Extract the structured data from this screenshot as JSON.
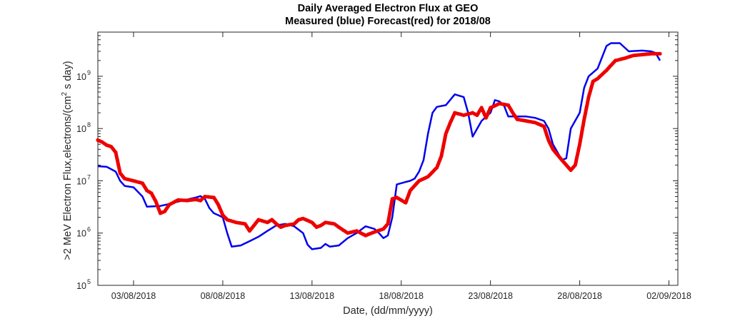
{
  "chart_data": {
    "type": "line",
    "title": "Daily Averaged Electron Flux at GEO",
    "subtitle": "Measured (blue) Forecast(red) for 2018/08",
    "xlabel": "Date, (dd/mm/yyyy)",
    "ylabel": ">2 MeV Electron Flux,electrons/(cm",
    "ylabel_sup": "2",
    "ylabel_suffix": " s day)",
    "yscale": "log",
    "ylim": [
      100000,
      7000000000
    ],
    "xlim": [
      "2018-08-01",
      "2018-09-02T12:00"
    ],
    "grid": false,
    "xticks": [
      {
        "date": "2018-08-03",
        "label": "03/08/2018"
      },
      {
        "date": "2018-08-08",
        "label": "08/08/2018"
      },
      {
        "date": "2018-08-13",
        "label": "13/08/2018"
      },
      {
        "date": "2018-08-18",
        "label": "18/08/2018"
      },
      {
        "date": "2018-08-23",
        "label": "23/08/2018"
      },
      {
        "date": "2018-08-28",
        "label": "28/08/2018"
      },
      {
        "date": "2018-09-02",
        "label": "02/09/2018"
      }
    ],
    "yticks": [
      {
        "value": 100000,
        "base": "10",
        "exp": "5"
      },
      {
        "value": 1000000,
        "base": "10",
        "exp": "6"
      },
      {
        "value": 10000000,
        "base": "10",
        "exp": "7"
      },
      {
        "value": 100000000,
        "base": "10",
        "exp": "8"
      },
      {
        "value": 1000000000,
        "base": "10",
        "exp": "9"
      }
    ],
    "series": [
      {
        "color": "#0000ee",
        "style": "line",
        "points": [
          [
            "2018-08-01T00:00",
            19000000.0
          ],
          [
            "2018-08-01T12:00",
            18500000.0
          ],
          [
            "2018-08-02T00:00",
            15000000.0
          ],
          [
            "2018-08-02T06:00",
            10000000.0
          ],
          [
            "2018-08-02T12:00",
            8000000.0
          ],
          [
            "2018-08-03T00:00",
            7500000.0
          ],
          [
            "2018-08-03T12:00",
            5000000.0
          ],
          [
            "2018-08-03T18:00",
            3200000.0
          ],
          [
            "2018-08-04T12:00",
            3300000.0
          ],
          [
            "2018-08-05T00:00",
            3600000.0
          ],
          [
            "2018-08-05T12:00",
            4000000.0
          ],
          [
            "2018-08-06T12:00",
            4800000.0
          ],
          [
            "2018-08-06T18:00",
            5100000.0
          ],
          [
            "2018-08-07T00:00",
            4500000.0
          ],
          [
            "2018-08-07T06:00",
            3000000.0
          ],
          [
            "2018-08-07T12:00",
            2400000.0
          ],
          [
            "2018-08-07T18:00",
            2200000.0
          ],
          [
            "2018-08-08T00:00",
            2000000.0
          ],
          [
            "2018-08-08T06:00",
            1000000.0
          ],
          [
            "2018-08-08T12:00",
            550000.0
          ],
          [
            "2018-08-09T00:00",
            580000.0
          ],
          [
            "2018-08-09T12:00",
            700000.0
          ],
          [
            "2018-08-10T00:00",
            850000.0
          ],
          [
            "2018-08-10T12:00",
            1100000.0
          ],
          [
            "2018-08-11T00:00",
            1400000.0
          ],
          [
            "2018-08-11T12:00",
            1500000.0
          ],
          [
            "2018-08-12T00:00",
            1350000.0
          ],
          [
            "2018-08-12T12:00",
            1000000.0
          ],
          [
            "2018-08-12T18:00",
            600000.0
          ],
          [
            "2018-08-13T00:00",
            490000.0
          ],
          [
            "2018-08-13T12:00",
            520000.0
          ],
          [
            "2018-08-13T18:00",
            620000.0
          ],
          [
            "2018-08-14T00:00",
            550000.0
          ],
          [
            "2018-08-14T12:00",
            580000.0
          ],
          [
            "2018-08-15T00:00",
            800000.0
          ],
          [
            "2018-08-15T12:00",
            1000000.0
          ],
          [
            "2018-08-16T00:00",
            1350000.0
          ],
          [
            "2018-08-16T12:00",
            1200000.0
          ],
          [
            "2018-08-16T18:00",
            1000000.0
          ],
          [
            "2018-08-17T00:00",
            800000.0
          ],
          [
            "2018-08-17T06:00",
            900000.0
          ],
          [
            "2018-08-17T12:00",
            2000000.0
          ],
          [
            "2018-08-17T18:00",
            8500000.0
          ],
          [
            "2018-08-18T06:00",
            9500000.0
          ],
          [
            "2018-08-18T12:00",
            10000000.0
          ],
          [
            "2018-08-18T18:00",
            11000000.0
          ],
          [
            "2018-08-19T00:00",
            15000000.0
          ],
          [
            "2018-08-19T06:00",
            25000000.0
          ],
          [
            "2018-08-19T12:00",
            80000000.0
          ],
          [
            "2018-08-19T18:00",
            200000000.0
          ],
          [
            "2018-08-20T00:00",
            260000000.0
          ],
          [
            "2018-08-20T12:00",
            280000000.0
          ],
          [
            "2018-08-21T00:00",
            450000000.0
          ],
          [
            "2018-08-21T12:00",
            400000000.0
          ],
          [
            "2018-08-21T18:00",
            200000000.0
          ],
          [
            "2018-08-22T00:00",
            70000000.0
          ],
          [
            "2018-08-22T12:00",
            140000000.0
          ],
          [
            "2018-08-23T00:00",
            200000000.0
          ],
          [
            "2018-08-23T06:00",
            350000000.0
          ],
          [
            "2018-08-23T12:00",
            330000000.0
          ],
          [
            "2018-08-23T18:00",
            280000000.0
          ],
          [
            "2018-08-24T00:00",
            170000000.0
          ],
          [
            "2018-08-25T00:00",
            170000000.0
          ],
          [
            "2018-08-25T12:00",
            160000000.0
          ],
          [
            "2018-08-26T00:00",
            140000000.0
          ],
          [
            "2018-08-26T06:00",
            100000000.0
          ],
          [
            "2018-08-26T12:00",
            50000000.0
          ],
          [
            "2018-08-27T00:00",
            25000000.0
          ],
          [
            "2018-08-27T06:00",
            27000000.0
          ],
          [
            "2018-08-27T12:00",
            100000000.0
          ],
          [
            "2018-08-28T00:00",
            200000000.0
          ],
          [
            "2018-08-28T06:00",
            600000000.0
          ],
          [
            "2018-08-28T12:00",
            1000000000.0
          ],
          [
            "2018-08-29T00:00",
            1400000000.0
          ],
          [
            "2018-08-29T12:00",
            3800000000.0
          ],
          [
            "2018-08-29T18:00",
            4300000000.0
          ],
          [
            "2018-08-30T06:00",
            4300000000.0
          ],
          [
            "2018-08-30T18:00",
            3000000000.0
          ],
          [
            "2018-08-31T12:00",
            3100000000.0
          ],
          [
            "2018-09-01T00:00",
            3000000000.0
          ],
          [
            "2018-09-01T06:00",
            2800000000.0
          ],
          [
            "2018-09-01T12:00",
            2000000000.0
          ]
        ]
      },
      {
        "color": "#ee0000",
        "style": "dots",
        "points": [
          [
            "2018-08-01T00:00",
            60000000.0
          ],
          [
            "2018-08-01T06:00",
            55000000.0
          ],
          [
            "2018-08-01T12:00",
            48000000.0
          ],
          [
            "2018-08-01T18:00",
            45000000.0
          ],
          [
            "2018-08-02T00:00",
            35000000.0
          ],
          [
            "2018-08-02T06:00",
            14000000.0
          ],
          [
            "2018-08-02T12:00",
            11000000.0
          ],
          [
            "2018-08-03T00:00",
            10000000.0
          ],
          [
            "2018-08-03T12:00",
            9000000.0
          ],
          [
            "2018-08-03T18:00",
            6500000.0
          ],
          [
            "2018-08-04T00:00",
            5800000.0
          ],
          [
            "2018-08-04T06:00",
            4000000.0
          ],
          [
            "2018-08-04T12:00",
            2400000.0
          ],
          [
            "2018-08-04T18:00",
            2600000.0
          ],
          [
            "2018-08-05T00:00",
            3500000.0
          ],
          [
            "2018-08-05T12:00",
            4300000.0
          ],
          [
            "2018-08-06T00:00",
            4200000.0
          ],
          [
            "2018-08-06T12:00",
            4400000.0
          ],
          [
            "2018-08-06T18:00",
            4200000.0
          ],
          [
            "2018-08-07T00:00",
            5000000.0
          ],
          [
            "2018-08-07T12:00",
            4800000.0
          ],
          [
            "2018-08-07T18:00",
            3500000.0
          ],
          [
            "2018-08-08T00:00",
            2200000.0
          ],
          [
            "2018-08-08T06:00",
            1800000.0
          ],
          [
            "2018-08-08T18:00",
            1600000.0
          ],
          [
            "2018-08-09T06:00",
            1500000.0
          ],
          [
            "2018-08-09T12:00",
            1100000.0
          ],
          [
            "2018-08-09T18:00",
            1400000.0
          ],
          [
            "2018-08-10T00:00",
            1800000.0
          ],
          [
            "2018-08-10T12:00",
            1600000.0
          ],
          [
            "2018-08-10T18:00",
            1800000.0
          ],
          [
            "2018-08-11T00:00",
            1500000.0
          ],
          [
            "2018-08-11T06:00",
            1300000.0
          ],
          [
            "2018-08-11T12:00",
            1400000.0
          ],
          [
            "2018-08-12T00:00",
            1500000.0
          ],
          [
            "2018-08-12T06:00",
            1800000.0
          ],
          [
            "2018-08-12T12:00",
            1900000.0
          ],
          [
            "2018-08-13T00:00",
            1600000.0
          ],
          [
            "2018-08-13T06:00",
            1300000.0
          ],
          [
            "2018-08-13T12:00",
            1400000.0
          ],
          [
            "2018-08-13T18:00",
            1600000.0
          ],
          [
            "2018-08-14T06:00",
            1500000.0
          ],
          [
            "2018-08-14T12:00",
            1300000.0
          ],
          [
            "2018-08-15T00:00",
            1000000.0
          ],
          [
            "2018-08-15T12:00",
            1100000.0
          ],
          [
            "2018-08-16T00:00",
            900000.0
          ],
          [
            "2018-08-16T12:00",
            1050000.0
          ],
          [
            "2018-08-17T00:00",
            1200000.0
          ],
          [
            "2018-08-17T06:00",
            1500000.0
          ],
          [
            "2018-08-17T12:00",
            4500000.0
          ],
          [
            "2018-08-17T18:00",
            4800000.0
          ],
          [
            "2018-08-18T06:00",
            3800000.0
          ],
          [
            "2018-08-18T12:00",
            6500000.0
          ],
          [
            "2018-08-19T00:00",
            10000000.0
          ],
          [
            "2018-08-19T12:00",
            12000000.0
          ],
          [
            "2018-08-20T00:00",
            18000000.0
          ],
          [
            "2018-08-20T06:00",
            30000000.0
          ],
          [
            "2018-08-20T12:00",
            80000000.0
          ],
          [
            "2018-08-20T18:00",
            130000000.0
          ],
          [
            "2018-08-21T00:00",
            200000000.0
          ],
          [
            "2018-08-21T12:00",
            180000000.0
          ],
          [
            "2018-08-22T00:00",
            200000000.0
          ],
          [
            "2018-08-22T06:00",
            180000000.0
          ],
          [
            "2018-08-22T12:00",
            250000000.0
          ],
          [
            "2018-08-22T18:00",
            160000000.0
          ],
          [
            "2018-08-23T00:00",
            250000000.0
          ],
          [
            "2018-08-23T12:00",
            300000000.0
          ],
          [
            "2018-08-24T00:00",
            280000000.0
          ],
          [
            "2018-08-24T06:00",
            200000000.0
          ],
          [
            "2018-08-24T12:00",
            150000000.0
          ],
          [
            "2018-08-25T00:00",
            140000000.0
          ],
          [
            "2018-08-25T12:00",
            130000000.0
          ],
          [
            "2018-08-26T00:00",
            110000000.0
          ],
          [
            "2018-08-26T06:00",
            60000000.0
          ],
          [
            "2018-08-26T12:00",
            40000000.0
          ],
          [
            "2018-08-27T00:00",
            25000000.0
          ],
          [
            "2018-08-27T06:00",
            20000000.0
          ],
          [
            "2018-08-27T12:00",
            16000000.0
          ],
          [
            "2018-08-27T18:00",
            20000000.0
          ],
          [
            "2018-08-28T00:00",
            50000000.0
          ],
          [
            "2018-08-28T06:00",
            150000000.0
          ],
          [
            "2018-08-28T12:00",
            400000000.0
          ],
          [
            "2018-08-28T18:00",
            800000000.0
          ],
          [
            "2018-08-29T00:00",
            900000000.0
          ],
          [
            "2018-08-29T12:00",
            1300000000.0
          ],
          [
            "2018-08-30T00:00",
            2000000000.0
          ],
          [
            "2018-08-30T12:00",
            2200000000.0
          ],
          [
            "2018-08-31T00:00",
            2500000000.0
          ],
          [
            "2018-08-31T12:00",
            2600000000.0
          ],
          [
            "2018-09-01T00:00",
            2700000000.0
          ],
          [
            "2018-09-01T12:00",
            2700000000.0
          ]
        ]
      }
    ]
  }
}
